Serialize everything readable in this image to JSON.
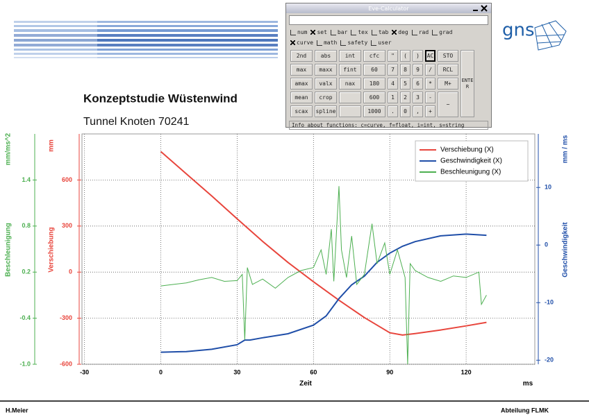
{
  "chart_data": {
    "type": "line",
    "title": "Konzeptstudie Wüstenwind",
    "subtitle": "Tunnel Knoten 70241",
    "x_label": "Zeit",
    "x_unit": "ms",
    "y_label": "Verschiebung",
    "y_unit": "mm",
    "y2_label": "Geschwindigkeit",
    "y2_unit": "mm / ms",
    "y3_label": "Beschleunigung",
    "y3_unit": "mm/ms^2",
    "xlim": [
      -31,
      147
    ],
    "xticks": [
      -30,
      0,
      30,
      60,
      90,
      120
    ],
    "ylim": [
      -600,
      900
    ],
    "yticks": [
      -600,
      -300,
      0,
      300,
      600
    ],
    "y2lim": [
      -20.7,
      19.3
    ],
    "y2ticks": [
      -20,
      -10,
      0,
      10
    ],
    "y3lim": [
      -1.0,
      2.0
    ],
    "y3ticks": [
      {
        "value": -1.0,
        "label": "-1.0"
      },
      -0.4,
      0.2,
      0.8,
      1.4
    ],
    "grid": true,
    "legend": "upper right",
    "series": [
      {
        "name": "Verschiebung (X)",
        "color": "#e8453c",
        "axis": "y",
        "x": [
          0,
          10,
          20,
          30,
          40,
          50,
          60,
          70,
          80,
          90,
          95,
          100,
          110,
          120,
          128
        ],
        "values": [
          785,
          640,
          496,
          347,
          200,
          63,
          -63,
          -183,
          -296,
          -395,
          -410,
          -400,
          -377,
          -350,
          -327
        ]
      },
      {
        "name": "Geschwindigkeit (X)",
        "color": "#1f4ea8",
        "axis": "y2",
        "x": [
          0,
          10,
          20,
          30,
          33,
          35,
          40,
          50,
          60,
          65,
          70,
          75,
          80,
          85,
          90,
          95,
          100,
          110,
          120,
          128
        ],
        "values": [
          -18.6,
          -18.5,
          -18.1,
          -17.3,
          -16.5,
          -16.5,
          -16.1,
          -15.4,
          -13.9,
          -12.3,
          -9.3,
          -6.9,
          -5.4,
          -3.0,
          -1.4,
          -0.2,
          0.6,
          1.6,
          1.9,
          1.7
        ]
      },
      {
        "name": "Beschleunigung (X)",
        "color": "#4caf50",
        "axis": "y3",
        "x": [
          0,
          5,
          10,
          15,
          20,
          25,
          30,
          32,
          33,
          34,
          36,
          40,
          45,
          50,
          55,
          60,
          63,
          65,
          67,
          68,
          70,
          71,
          73,
          75,
          77,
          80,
          83,
          85,
          88,
          90,
          93,
          96,
          97,
          98,
          100,
          105,
          110,
          115,
          120,
          125,
          126,
          128
        ],
        "values": [
          0.02,
          0.04,
          0.06,
          0.1,
          0.13,
          0.08,
          0.09,
          0.17,
          -0.68,
          0.26,
          0.04,
          0.11,
          -0.01,
          0.13,
          0.22,
          0.26,
          0.49,
          0.17,
          0.76,
          0.08,
          1.32,
          0.49,
          0.13,
          0.67,
          0.04,
          0.17,
          0.83,
          0.31,
          0.58,
          0.17,
          0.49,
          0.13,
          -1.0,
          0.31,
          0.22,
          0.13,
          0.08,
          0.15,
          0.13,
          0.2,
          -0.22,
          -0.1
        ]
      }
    ]
  },
  "logo": "gns",
  "footer": {
    "author": "H.Meier",
    "department": "Abteilung FLMK"
  },
  "calculator": {
    "title": "Eve-Calculator",
    "options": [
      [
        {
          "label": "num",
          "checked": false
        },
        {
          "label": "set",
          "checked": true
        },
        {
          "label": "bar",
          "checked": false
        },
        {
          "label": "tex",
          "checked": false
        },
        {
          "label": "tab",
          "checked": false
        },
        {
          "label": "deg",
          "checked": true
        },
        {
          "label": "rad",
          "checked": false
        },
        {
          "label": "grad",
          "checked": false
        }
      ],
      [
        {
          "label": "curve",
          "checked": true
        },
        {
          "label": "math",
          "checked": false
        },
        {
          "label": "safety",
          "checked": false
        },
        {
          "label": "user",
          "checked": false
        }
      ]
    ],
    "buttons": [
      [
        "2nd",
        "abs",
        "int",
        "cfc",
        "\"",
        "(",
        ")",
        "AC"
      ],
      [
        "max",
        "maxx",
        "fint",
        "60",
        "7",
        "8",
        "9",
        "/"
      ],
      [
        "amax",
        "valx",
        "nax",
        "180",
        "4",
        "5",
        "6",
        "*"
      ],
      [
        "mean",
        "crop",
        null,
        "600",
        "1",
        "2",
        "3",
        "-"
      ],
      [
        "scax",
        "spline",
        null,
        "1000",
        ".",
        "0",
        ",",
        "+"
      ]
    ],
    "side_buttons": [
      "STO",
      "RCL",
      "M+",
      "−"
    ],
    "enter": "ENTER",
    "status": "Info about functions: c=curve, f=float, i=int, s=string"
  }
}
